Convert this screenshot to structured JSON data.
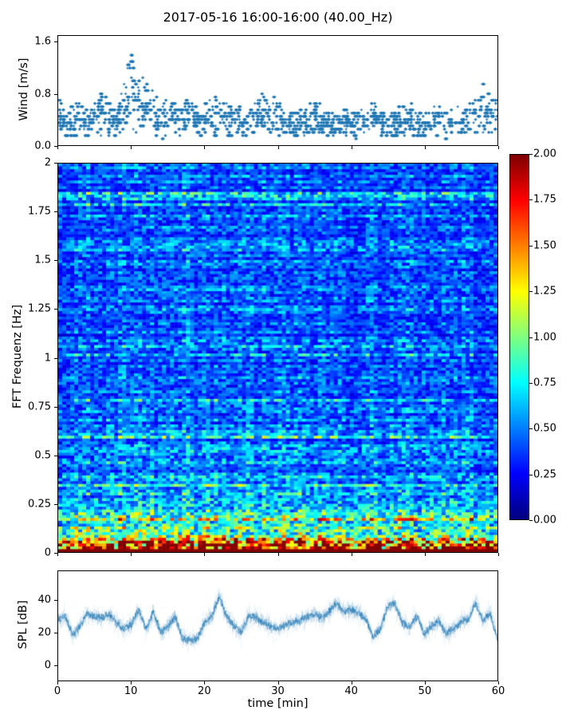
{
  "figure": {
    "title": "2017-05-16 16:00-16:00 (40.00_Hz)",
    "background": "#ffffff",
    "line_color": "#1f77b4"
  },
  "chart_data": [
    {
      "type": "scatter",
      "name": "wind",
      "ylabel": "Wind [m/s]",
      "ylim": [
        0,
        1.7
      ],
      "yticks": [
        0.0,
        0.8,
        1.6
      ],
      "ytick_labels": [
        "0.0",
        "0.8",
        "1.6"
      ],
      "xlim": [
        0,
        60
      ],
      "xticks": [
        0,
        10,
        20,
        30,
        40,
        50,
        60
      ],
      "marker": "+",
      "color": "#1f77b4",
      "quantization_step": 0.05,
      "envelope_max_by_minute": [
        0.8,
        0.6,
        0.75,
        0.75,
        0.6,
        0.9,
        0.85,
        0.7,
        0.7,
        1.1,
        1.62,
        1.3,
        1.05,
        0.9,
        0.7,
        0.85,
        0.7,
        0.6,
        0.9,
        0.7,
        0.75,
        0.8,
        0.85,
        0.9,
        0.7,
        0.6,
        0.6,
        0.8,
        0.9,
        0.85,
        0.7,
        0.6,
        0.55,
        0.6,
        0.65,
        0.75,
        0.6,
        0.55,
        0.6,
        0.6,
        0.65,
        0.6,
        0.7,
        0.7,
        0.6,
        0.55,
        0.6,
        0.65,
        0.75,
        0.6,
        0.6,
        0.65,
        0.7,
        0.6,
        0.6,
        0.65,
        0.7,
        0.85,
        1.0,
        1.05,
        0.9
      ]
    },
    {
      "type": "heatmap",
      "name": "spectrogram",
      "ylabel": "FFT Frequenz [Hz]",
      "ylim": [
        0,
        2
      ],
      "yticks": [
        0,
        0.25,
        0.5,
        0.75,
        1,
        1.25,
        1.5,
        1.75,
        2
      ],
      "ytick_labels": [
        "0",
        "0.25",
        "0.5",
        "0.75",
        "1",
        "1.25",
        "1.5",
        "1.75",
        "2"
      ],
      "xlim": [
        0,
        60
      ],
      "xticks": [
        0,
        10,
        20,
        30,
        40,
        50,
        60
      ],
      "colormap": "jet",
      "clim": [
        0,
        2
      ],
      "grid_cols": 110,
      "grid_rows": 137,
      "mean_intensity_by_freq": [
        [
          0.0,
          2.0
        ],
        [
          0.02,
          1.9
        ],
        [
          0.05,
          1.5
        ],
        [
          0.08,
          1.25
        ],
        [
          0.12,
          1.05
        ],
        [
          0.16,
          0.92
        ],
        [
          0.2,
          0.8
        ],
        [
          0.25,
          0.68
        ],
        [
          0.3,
          0.6
        ],
        [
          0.4,
          0.54
        ],
        [
          0.5,
          0.5
        ],
        [
          0.7,
          0.46
        ],
        [
          1.0,
          0.44
        ],
        [
          1.5,
          0.43
        ],
        [
          2.0,
          0.43
        ]
      ],
      "colorbar": {
        "tick_values": [
          0,
          0.25,
          0.5,
          0.75,
          1,
          1.25,
          1.5,
          1.75,
          2
        ],
        "tick_labels": [
          "0.00",
          "0.25",
          "0.50",
          "0.75",
          "1.00",
          "1.25",
          "1.50",
          "1.75",
          "2.00"
        ]
      }
    },
    {
      "type": "line",
      "name": "spl",
      "ylabel": "SPL [dB]",
      "xlabel": "time [min]",
      "ylim": [
        -10,
        58
      ],
      "yticks": [
        0,
        20,
        40
      ],
      "ytick_labels": [
        "0",
        "20",
        "40"
      ],
      "xticks": [
        0,
        10,
        20,
        30,
        40,
        50,
        60
      ],
      "xtick_labels": [
        "0",
        "10",
        "20",
        "30",
        "40",
        "50",
        "60"
      ],
      "color": "#1f77b4",
      "mean_db_by_minute": [
        28,
        30,
        18,
        24,
        32,
        30,
        29,
        31,
        26,
        22,
        25,
        34,
        22,
        33,
        20,
        24,
        30,
        16,
        15,
        16,
        26,
        30,
        42,
        30,
        24,
        20,
        30,
        29,
        26,
        24,
        22,
        25,
        26,
        27,
        30,
        31,
        29,
        33,
        38,
        33,
        34,
        32,
        28,
        17,
        22,
        36,
        38,
        26,
        23,
        30,
        19,
        24,
        27,
        19,
        22,
        26,
        28,
        38,
        27,
        32,
        15
      ],
      "noise_band_db": 12
    }
  ]
}
